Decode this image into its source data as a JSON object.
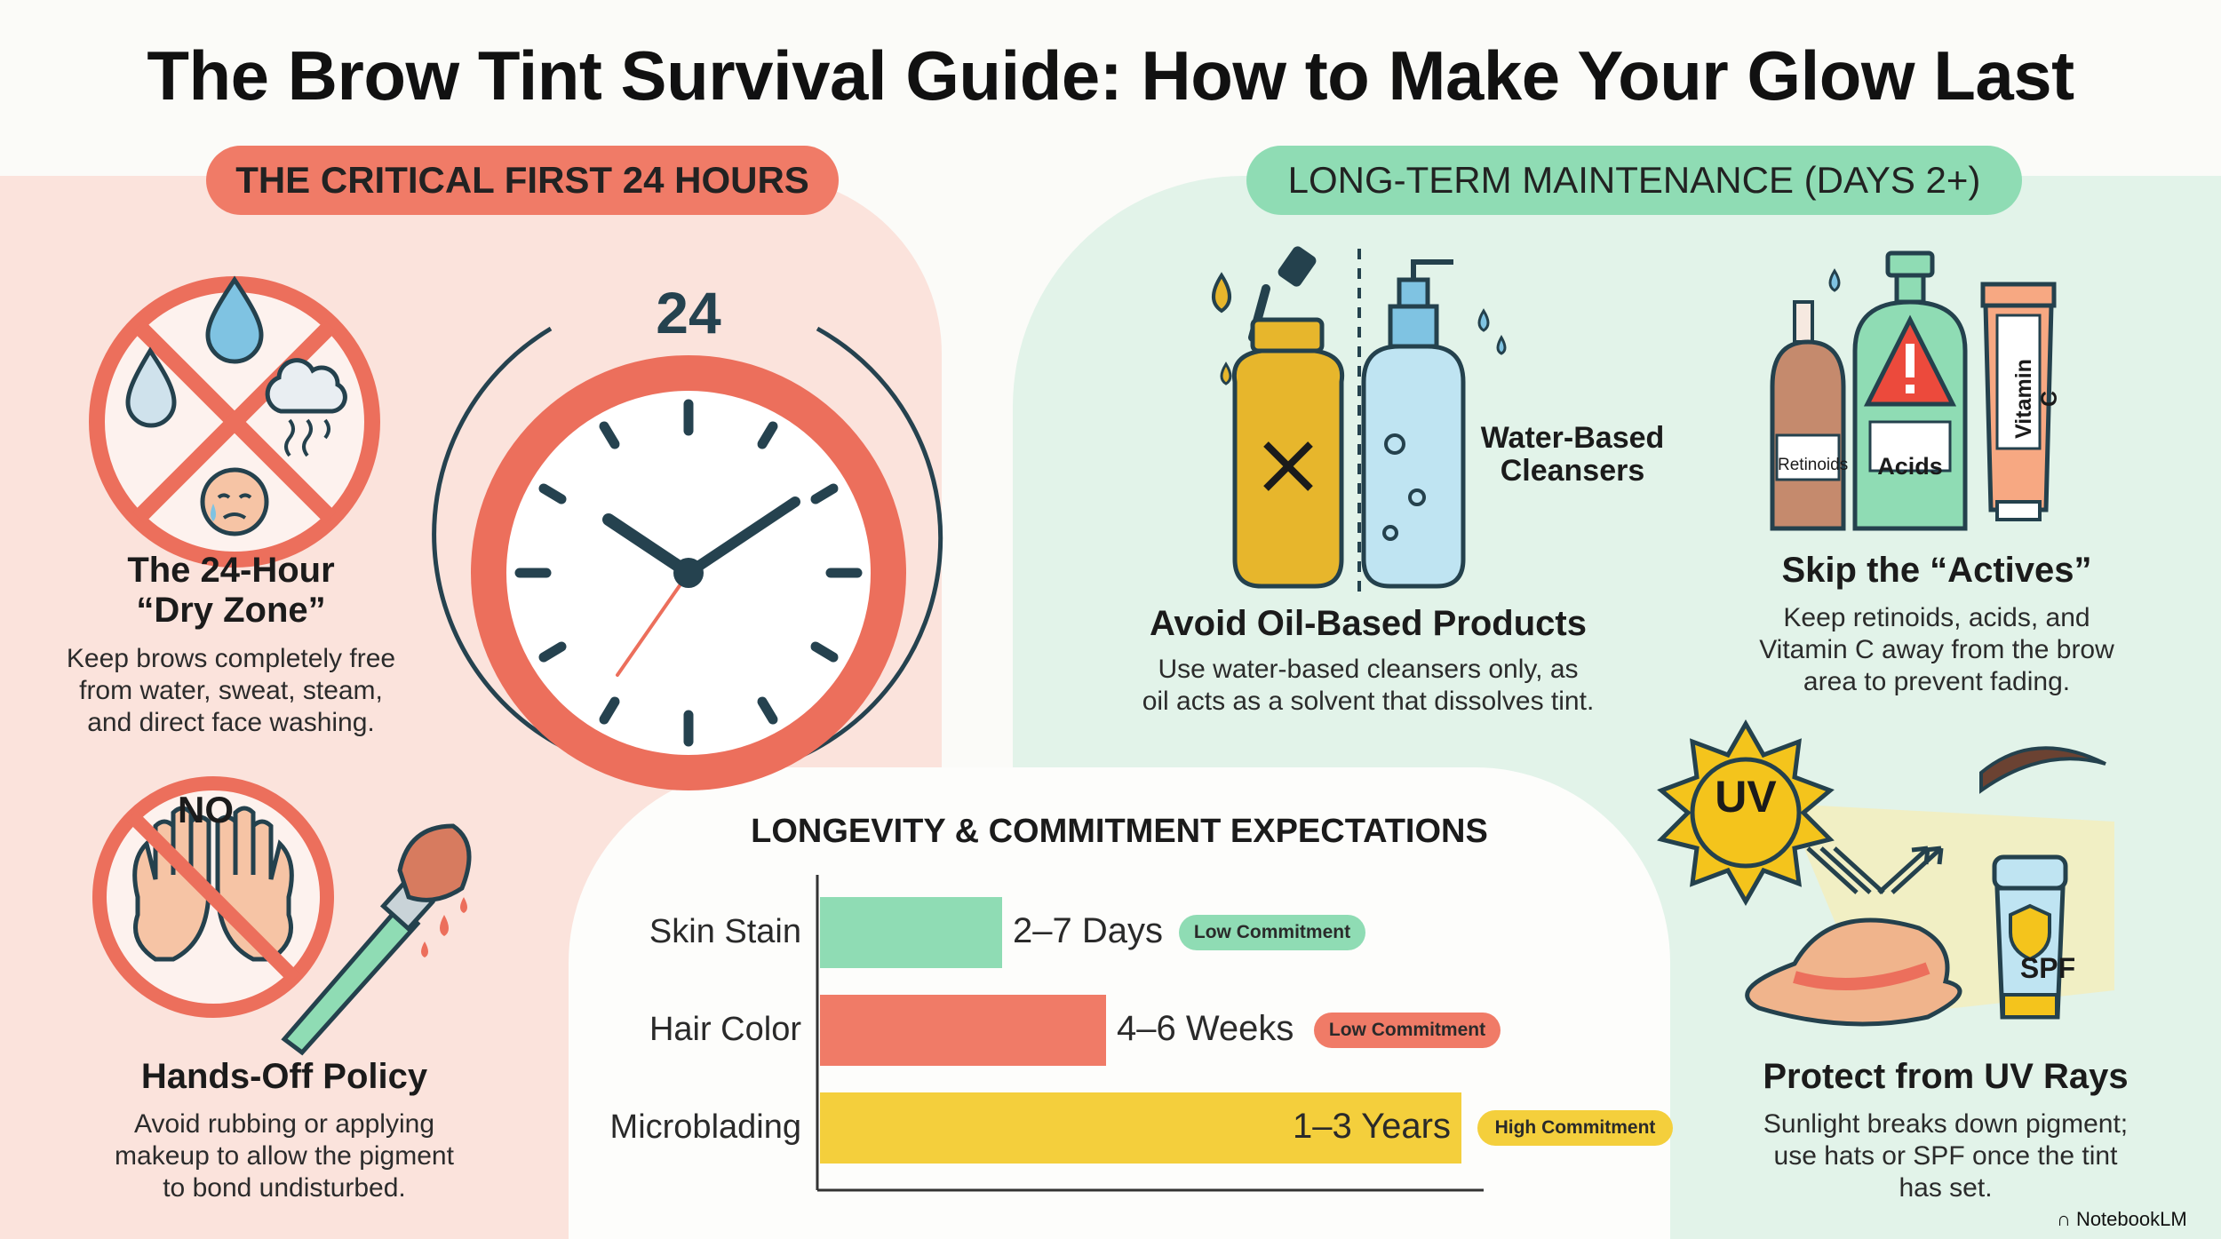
{
  "title": "The Brow Tint Survival Guide: How to Make Your Glow Last",
  "sections": {
    "first24": "THE CRITICAL FIRST 24 HOURS",
    "longterm": "LONG-TERM MAINTENANCE (DAYS 2+)"
  },
  "clock": {
    "label": "24"
  },
  "dry_zone": {
    "heading_line1": "The 24-Hour",
    "heading_line2": "“Dry Zone”",
    "body_line1": "Keep brows completely free",
    "body_line2": "from water, sweat, steam,",
    "body_line3": "and direct face washing."
  },
  "hands_off": {
    "no_label": "NO",
    "heading": "Hands-Off Policy",
    "body_line1": "Avoid rubbing or applying",
    "body_line2": "makeup to allow the pigment",
    "body_line3": "to bond undisturbed."
  },
  "oil": {
    "water_label_line1": "Water-Based",
    "water_label_line2": "Cleansers",
    "heading": "Avoid Oil-Based Products",
    "body_line1": "Use water-based cleansers only, as",
    "body_line2": "oil acts as a solvent that dissolves tint."
  },
  "actives": {
    "bottle_retinoids": "Retinoids",
    "bottle_acids": "Acids",
    "bottle_vitc": "Vitamin C",
    "heading": "Skip the “Actives”",
    "body_line1": "Keep retinoids, acids, and",
    "body_line2": "Vitamin C away from the brow",
    "body_line3": "area to prevent fading."
  },
  "uv": {
    "sun_label": "UV",
    "spf_label": "SPF",
    "heading": "Protect from UV Rays",
    "body_line1": "Sunlight breaks down pigment;",
    "body_line2": "use hats or SPF once the tint",
    "body_line3": "has set."
  },
  "colors": {
    "red": "#f07b67",
    "green": "#8fdcb4",
    "yellow": "#f4cf3c",
    "navy": "#25424f"
  },
  "chart_data": {
    "type": "bar",
    "orientation": "horizontal",
    "title": "LONGEVITY & COMMITMENT EXPECTATIONS",
    "categories": [
      "Skin Stain",
      "Hair Color",
      "Microblading"
    ],
    "values": [
      1,
      2,
      6
    ],
    "value_labels": [
      "2–7 Days",
      "4–6 Weeks",
      "1–3 Years"
    ],
    "badges": [
      "Low Commitment",
      "Low Commitment",
      "High Commitment"
    ],
    "bar_colors": [
      "#8fdcb4",
      "#f07b67",
      "#f4cf3c"
    ],
    "badge_colors": [
      "#8fdcb4",
      "#f07b67",
      "#f4cf3c"
    ],
    "grid": false
  },
  "brand": "NotebookLM"
}
